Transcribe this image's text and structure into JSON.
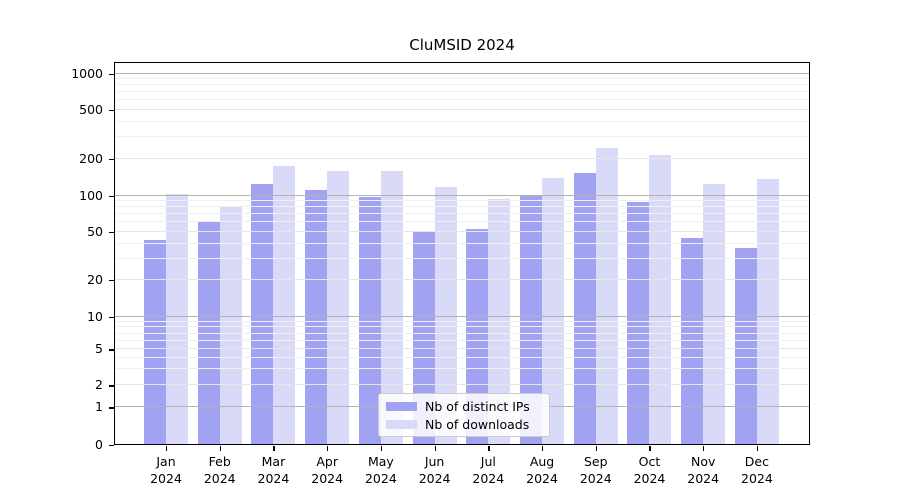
{
  "chart_data": {
    "type": "bar",
    "title": "CluMSID 2024",
    "categories": [
      {
        "month": "Jan",
        "year": "2024"
      },
      {
        "month": "Feb",
        "year": "2024"
      },
      {
        "month": "Mar",
        "year": "2024"
      },
      {
        "month": "Apr",
        "year": "2024"
      },
      {
        "month": "May",
        "year": "2024"
      },
      {
        "month": "Jun",
        "year": "2024"
      },
      {
        "month": "Jul",
        "year": "2024"
      },
      {
        "month": "Aug",
        "year": "2024"
      },
      {
        "month": "Sep",
        "year": "2024"
      },
      {
        "month": "Oct",
        "year": "2024"
      },
      {
        "month": "Nov",
        "year": "2024"
      },
      {
        "month": "Dec",
        "year": "2024"
      }
    ],
    "series": [
      {
        "name": "Nb of distinct IPs",
        "color": "#a2a2f2",
        "values": [
          43,
          62,
          124,
          112,
          97,
          51,
          53,
          99,
          155,
          88,
          45,
          37
        ]
      },
      {
        "name": "Nb of downloads",
        "color": "#d9d9f8",
        "values": [
          103,
          81,
          174,
          161,
          159,
          118,
          93,
          141,
          246,
          216,
          124,
          136
        ]
      }
    ],
    "xlabel": "",
    "ylabel": "",
    "yticks": [
      0,
      1,
      2,
      5,
      10,
      20,
      50,
      100,
      200,
      500,
      1000
    ],
    "minor_yticks": [
      3,
      4,
      6,
      7,
      8,
      9,
      30,
      40,
      60,
      70,
      80,
      90,
      300,
      400,
      600,
      700,
      800,
      900
    ],
    "ylim": [
      0,
      1270
    ],
    "grid": true,
    "legend": {
      "position": "lower-center",
      "entries": [
        "Nb of distinct IPs",
        "Nb of downloads"
      ]
    },
    "scale": {
      "type": "symlog-like",
      "anchors": [
        [
          0,
          0.0
        ],
        [
          1,
          0.0983
        ],
        [
          2,
          0.1557
        ],
        [
          5,
          0.2496
        ],
        [
          10,
          0.3346
        ],
        [
          20,
          0.4303
        ],
        [
          50,
          0.5562
        ],
        [
          100,
          0.6511
        ],
        [
          200,
          0.7466
        ],
        [
          500,
          0.8753
        ],
        [
          1000,
          0.9692
        ]
      ]
    },
    "colors": {
      "decade_gridline": "#b2b2b2",
      "labeled_gridline": "#e6e6e6",
      "minor_gridline": "#f0f0f0",
      "axis": "#000000",
      "background": "#ffffff"
    }
  }
}
